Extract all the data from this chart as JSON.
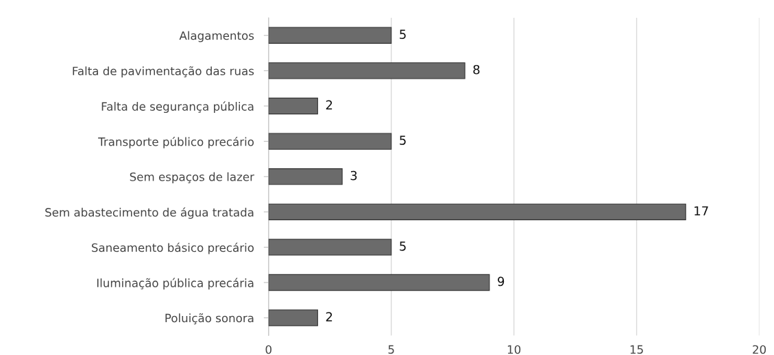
{
  "chart_data": {
    "type": "bar",
    "orientation": "horizontal",
    "categories": [
      "Alagamentos",
      "Falta de pavimentação das ruas",
      "Falta de segurança pública",
      "Transporte público precário",
      "Sem espaços de lazer",
      "Sem abastecimento de água tratada",
      "Saneamento básico precário",
      "Iluminação pública precária",
      "Poluição sonora"
    ],
    "values": [
      5,
      8,
      2,
      5,
      3,
      17,
      5,
      9,
      2
    ],
    "color": "#6b6b6b",
    "xlim": [
      0,
      20
    ],
    "xticks": [
      0,
      5,
      10,
      15,
      20
    ],
    "grid": "x",
    "data_labels": true
  }
}
